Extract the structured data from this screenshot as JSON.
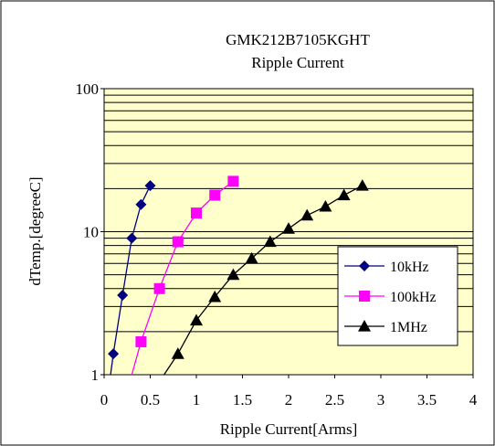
{
  "chart_data": {
    "type": "line",
    "title": "GMK212B7105KGHT",
    "subtitle": "Ripple Current",
    "xlabel": "Ripple Current[Arms]",
    "ylabel": "dTemp.[degreeC]",
    "xlim": [
      0,
      4
    ],
    "ylim": [
      1,
      100
    ],
    "yscale": "log",
    "x_ticks": [
      "0",
      "0.5",
      "1",
      "1.5",
      "2",
      "2.5",
      "3",
      "3.5",
      "4"
    ],
    "y_ticks": [
      "1",
      "10",
      "100"
    ],
    "grid": true,
    "legend_position": "bottom-right",
    "colors": {
      "plot_bg": "#ffffcc"
    },
    "series": [
      {
        "name": "10kHz",
        "color": "#000080",
        "marker": "diamond",
        "x": [
          0.1,
          0.2,
          0.3,
          0.4,
          0.5
        ],
        "y": [
          1.4,
          3.6,
          9.0,
          15.5,
          21.0
        ],
        "trend_x": [
          0.07,
          0.1,
          0.2,
          0.3,
          0.4,
          0.5
        ],
        "trend_y": [
          1.0,
          1.4,
          3.6,
          9.0,
          15.5,
          21.0
        ]
      },
      {
        "name": "100kHz",
        "color": "#ff00ff",
        "marker": "square",
        "x": [
          0.4,
          0.6,
          0.8,
          1.0,
          1.2,
          1.4
        ],
        "y": [
          1.7,
          4.0,
          8.5,
          13.5,
          18.0,
          22.5
        ],
        "trend_x": [
          0.3,
          0.4,
          0.6,
          0.8,
          1.0,
          1.2,
          1.4
        ],
        "trend_y": [
          1.0,
          1.7,
          4.0,
          8.5,
          13.5,
          18.0,
          22.5
        ]
      },
      {
        "name": "1MHz",
        "color": "#000000",
        "marker": "triangle",
        "x": [
          0.8,
          1.0,
          1.2,
          1.4,
          1.6,
          1.8,
          2.0,
          2.2,
          2.4,
          2.6,
          2.8
        ],
        "y": [
          1.4,
          2.4,
          3.5,
          5.0,
          6.5,
          8.5,
          10.5,
          13.0,
          15.0,
          18.0,
          21.0
        ],
        "trend_x": [
          0.65,
          0.8,
          1.0,
          1.2,
          1.4,
          1.6,
          1.8,
          2.0,
          2.2,
          2.4,
          2.6,
          2.8
        ],
        "trend_y": [
          1.0,
          1.4,
          2.4,
          3.5,
          5.0,
          6.5,
          8.5,
          10.5,
          13.0,
          15.0,
          18.0,
          21.0
        ]
      }
    ]
  }
}
